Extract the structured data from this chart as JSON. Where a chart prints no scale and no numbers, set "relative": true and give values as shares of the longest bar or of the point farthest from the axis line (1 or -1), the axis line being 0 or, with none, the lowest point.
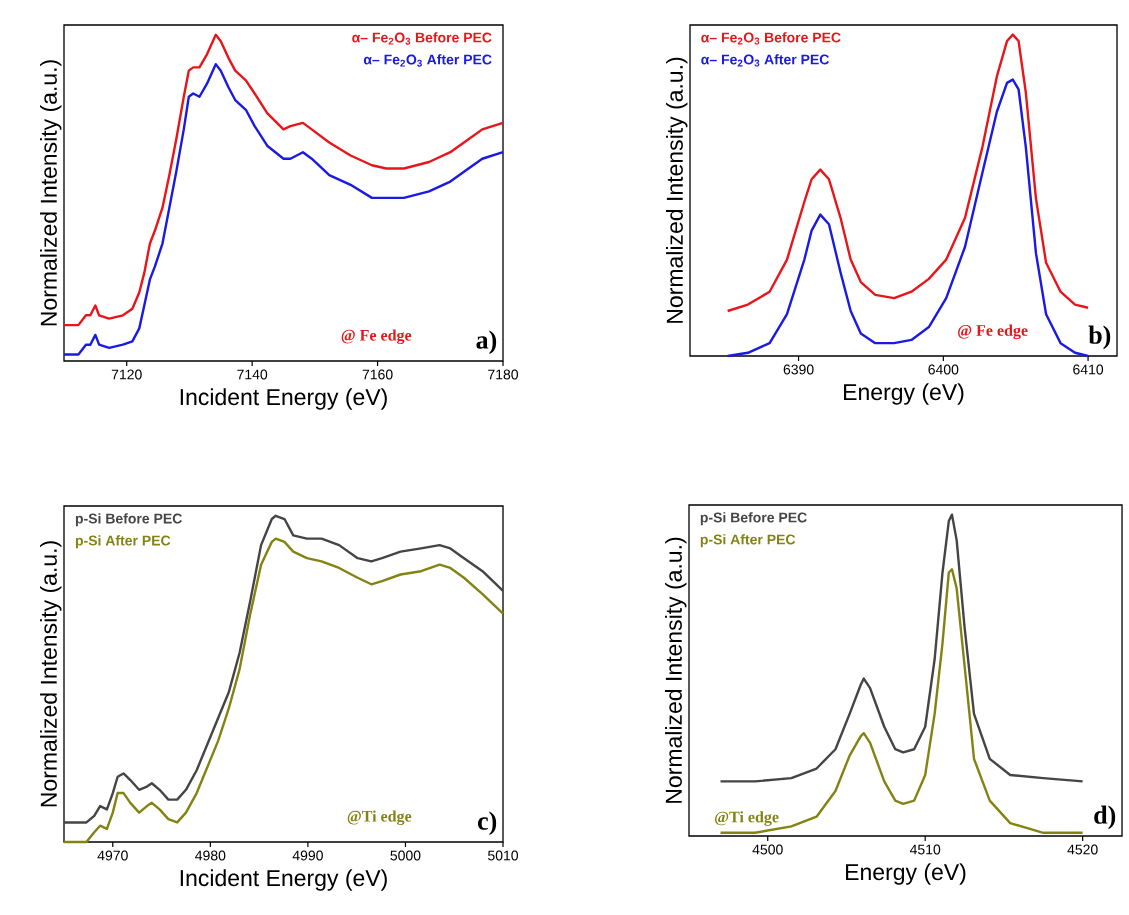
{
  "chart_data": [
    {
      "type": "line",
      "xlabel": "Incident Energy (eV)",
      "ylabel": "Normalized Intensity (a.u.)",
      "relative": true,
      "xlim": [
        7110,
        7180
      ],
      "xticks": [
        7120,
        7140,
        7160,
        7180
      ],
      "legend": "top right",
      "marker": "none",
      "annotations": [
        "@ Fe edge",
        "a)"
      ],
      "x": [
        7110,
        7112.3,
        7113.5,
        7114.2,
        7115.0,
        7115.6,
        7117.2,
        7119.4,
        7120.9,
        7122.0,
        7122.8,
        7123.7,
        7124.5,
        7125.7,
        7126.8,
        7127.9,
        7129.1,
        7129.9,
        7130.6,
        7131.6,
        7132.8,
        7134.2,
        7135.0,
        7136.2,
        7137.3,
        7139.0,
        7140.4,
        7142.4,
        7145.0,
        7146.1,
        7148.1,
        7149.5,
        7152.3,
        7155.7,
        7159.1,
        7161.4,
        7164.2,
        7168.2,
        7171.6,
        7174.5,
        7176.7,
        7180
      ],
      "series": [
        {
          "name": "α– Fe$_{2}$O$_{3}$ Before PEC",
          "color": "#e8161b",
          "values": [
            0.11,
            0.11,
            0.14,
            0.14,
            0.17,
            0.14,
            0.13,
            0.14,
            0.16,
            0.21,
            0.27,
            0.36,
            0.4,
            0.47,
            0.57,
            0.68,
            0.81,
            0.89,
            0.9,
            0.9,
            0.94,
            1.0,
            0.98,
            0.93,
            0.89,
            0.86,
            0.82,
            0.76,
            0.71,
            0.72,
            0.73,
            0.71,
            0.67,
            0.63,
            0.6,
            0.59,
            0.59,
            0.61,
            0.64,
            0.68,
            0.71,
            0.73
          ]
        },
        {
          "name": "α– Fe$_{2}$O$_{3}$ After PEC",
          "color": "#1a1ae6",
          "values": [
            0.02,
            0.02,
            0.05,
            0.05,
            0.08,
            0.05,
            0.04,
            0.05,
            0.06,
            0.1,
            0.17,
            0.25,
            0.29,
            0.36,
            0.47,
            0.58,
            0.71,
            0.81,
            0.82,
            0.81,
            0.85,
            0.91,
            0.89,
            0.84,
            0.8,
            0.77,
            0.72,
            0.66,
            0.62,
            0.62,
            0.64,
            0.62,
            0.57,
            0.54,
            0.5,
            0.5,
            0.5,
            0.52,
            0.55,
            0.59,
            0.62,
            0.64
          ]
        }
      ]
    },
    {
      "type": "line",
      "xlabel": "Energy (eV)",
      "ylabel": "Normalized Intensity (a.u.)",
      "relative": true,
      "xlim": [
        6382.5,
        6412
      ],
      "xticks": [
        6390,
        6400,
        6410
      ],
      "legend": "top left",
      "marker": "none",
      "annotations": [
        "@ Fe edge",
        "b)"
      ],
      "x": [
        6385.1,
        6386.5,
        6388.0,
        6389.2,
        6390.4,
        6390.9,
        6391.5,
        6392.1,
        6392.9,
        6393.6,
        6394.3,
        6395.3,
        6396.6,
        6397.8,
        6399.0,
        6400.2,
        6401.5,
        6402.7,
        6403.7,
        6404.4,
        6404.8,
        6405.2,
        6405.7,
        6406.4,
        6407.1,
        6408.1,
        6409.1,
        6410.0
      ],
      "series": [
        {
          "name": "α– Fe$_{2}$O$_{3}$ Before PEC",
          "color": "#e8161b",
          "values": [
            0.14,
            0.16,
            0.2,
            0.3,
            0.48,
            0.55,
            0.58,
            0.55,
            0.43,
            0.3,
            0.23,
            0.19,
            0.18,
            0.2,
            0.24,
            0.3,
            0.43,
            0.65,
            0.87,
            0.98,
            1.0,
            0.98,
            0.82,
            0.49,
            0.29,
            0.2,
            0.16,
            0.15
          ]
        },
        {
          "name": "α– Fe$_{2}$O$_{3}$ After PEC",
          "color": "#1a1ae6",
          "values": [
            0.0,
            0.01,
            0.04,
            0.13,
            0.3,
            0.39,
            0.44,
            0.41,
            0.26,
            0.14,
            0.07,
            0.04,
            0.04,
            0.05,
            0.09,
            0.18,
            0.34,
            0.57,
            0.76,
            0.85,
            0.86,
            0.83,
            0.65,
            0.32,
            0.13,
            0.04,
            0.01,
            0.0
          ]
        }
      ]
    },
    {
      "type": "line",
      "xlabel": "Incident Energy (eV)",
      "ylabel": "Normalized Intensity (a.u.)",
      "relative": true,
      "xlim": [
        4965,
        5010
      ],
      "xticks": [
        4970,
        4980,
        4990,
        5000,
        5010
      ],
      "legend": "top left",
      "marker": "none",
      "annotations": [
        "@Ti edge",
        "c)"
      ],
      "x": [
        4965.0,
        4967.3,
        4968.1,
        4968.7,
        4969.4,
        4970.0,
        4970.5,
        4971.1,
        4971.8,
        4972.7,
        4973.5,
        4974.0,
        4974.8,
        4975.7,
        4976.6,
        4977.5,
        4978.6,
        4979.7,
        4980.8,
        4981.9,
        4983.0,
        4984.1,
        4985.2,
        4986.3,
        4986.7,
        4987.6,
        4988.5,
        4989.9,
        4991.4,
        4993.2,
        4995.1,
        4996.5,
        4997.6,
        4999.5,
        5001.6,
        5003.5,
        5004.6,
        5006.0,
        5007.9,
        5010.0
      ],
      "series": [
        {
          "name": "p-Si Before PEC",
          "color": "#454545",
          "values": [
            0.06,
            0.06,
            0.08,
            0.11,
            0.1,
            0.15,
            0.2,
            0.21,
            0.19,
            0.16,
            0.17,
            0.18,
            0.16,
            0.13,
            0.13,
            0.16,
            0.22,
            0.3,
            0.38,
            0.46,
            0.58,
            0.74,
            0.91,
            0.99,
            1.0,
            0.99,
            0.94,
            0.93,
            0.93,
            0.91,
            0.87,
            0.86,
            0.87,
            0.89,
            0.9,
            0.91,
            0.9,
            0.87,
            0.83,
            0.77
          ]
        },
        {
          "name": "p-Si After PEC",
          "color": "#838312",
          "values": [
            0.0,
            0.0,
            0.03,
            0.05,
            0.04,
            0.09,
            0.15,
            0.15,
            0.12,
            0.09,
            0.11,
            0.12,
            0.1,
            0.07,
            0.06,
            0.09,
            0.15,
            0.23,
            0.31,
            0.41,
            0.53,
            0.7,
            0.85,
            0.92,
            0.93,
            0.92,
            0.89,
            0.87,
            0.86,
            0.84,
            0.81,
            0.79,
            0.8,
            0.82,
            0.83,
            0.85,
            0.84,
            0.81,
            0.76,
            0.7
          ]
        }
      ]
    },
    {
      "type": "line",
      "xlabel": "Energy (eV)",
      "ylabel": "Normalized Intensity (a.u.)",
      "relative": true,
      "xlim": [
        4495,
        4522.5
      ],
      "xticks": [
        4500,
        4510,
        4520
      ],
      "legend": "top left",
      "marker": "none",
      "annotations": [
        "@Ti edge",
        "d)"
      ],
      "x": [
        4497.0,
        4499.2,
        4501.5,
        4503.1,
        4504.3,
        4505.2,
        4505.9,
        4506.1,
        4506.5,
        4507.4,
        4508.1,
        4508.6,
        4509.3,
        4510.0,
        4510.6,
        4511.1,
        4511.5,
        4511.7,
        4512.0,
        4512.5,
        4513.1,
        4514.1,
        4515.4,
        4517.5,
        4520.0
      ],
      "series": [
        {
          "name": "p-Si Before PEC",
          "color": "#454545",
          "values": [
            0.17,
            0.17,
            0.18,
            0.21,
            0.27,
            0.38,
            0.47,
            0.49,
            0.46,
            0.34,
            0.27,
            0.26,
            0.27,
            0.34,
            0.55,
            0.82,
            0.98,
            1.0,
            0.92,
            0.65,
            0.38,
            0.24,
            0.19,
            0.18,
            0.17
          ]
        },
        {
          "name": "p-Si After PEC",
          "color": "#838312",
          "values": [
            0.01,
            0.01,
            0.03,
            0.06,
            0.14,
            0.25,
            0.31,
            0.32,
            0.29,
            0.17,
            0.11,
            0.1,
            0.11,
            0.19,
            0.38,
            0.6,
            0.82,
            0.83,
            0.77,
            0.53,
            0.24,
            0.11,
            0.04,
            0.01,
            0.01
          ]
        }
      ]
    }
  ]
}
